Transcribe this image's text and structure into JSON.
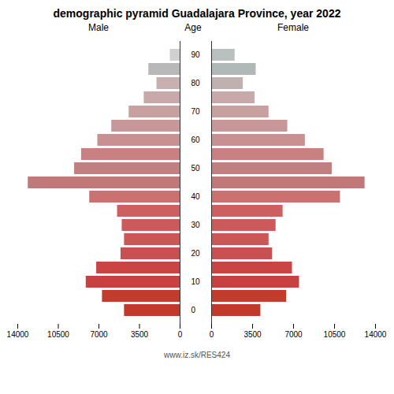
{
  "chart_data": {
    "type": "pyramid",
    "orientation": "horizontal",
    "title": "demographic pyramid Guadalajara Province, year 2022",
    "ylabel": "Age",
    "caption": "www.iz.sk/RES424",
    "categories": [
      "0",
      null,
      "10",
      null,
      "20",
      null,
      "30",
      null,
      "40",
      null,
      "50",
      null,
      "60",
      null,
      "70",
      null,
      "80",
      null,
      "90"
    ],
    "series": [
      {
        "name": "Male",
        "values": [
          4800,
          6700,
          8100,
          7200,
          5100,
          4800,
          5000,
          5400,
          7800,
          13100,
          9100,
          8500,
          7100,
          5900,
          4400,
          3100,
          2000,
          2700,
          850
        ],
        "colors": [
          "#c0392b",
          "#c23b2b",
          "#c94040",
          "#c94545",
          "#c95050",
          "#cc5555",
          "#cc5a5a",
          "#cc6060",
          "#cc7070",
          "#c07878",
          "#c08080",
          "#c88080",
          "#c89090",
          "#c89898",
          "#c8a0a0",
          "#c8a8a8",
          "#c8b0b0",
          "#b8b8b8",
          "#d0d0d0"
        ]
      },
      {
        "name": "Female",
        "values": [
          4200,
          6400,
          7500,
          6900,
          5200,
          4900,
          5500,
          6100,
          11000,
          13100,
          10300,
          9600,
          8000,
          6500,
          4900,
          3700,
          2700,
          3800,
          2000
        ],
        "colors": [
          "#c0392b",
          "#c23b2b",
          "#c94040",
          "#c94545",
          "#c95050",
          "#cc5555",
          "#cc5a5a",
          "#cc6060",
          "#cc7070",
          "#c07878",
          "#c08080",
          "#c88080",
          "#c89090",
          "#c89898",
          "#c8a0a0",
          "#c8a8a8",
          "#c0b0b0",
          "#b0b8b8",
          "#b8c0c0"
        ]
      }
    ],
    "xlim": [
      0,
      14000
    ],
    "xticks": [
      0,
      3500,
      7000,
      10500,
      14000
    ],
    "grid": false
  }
}
